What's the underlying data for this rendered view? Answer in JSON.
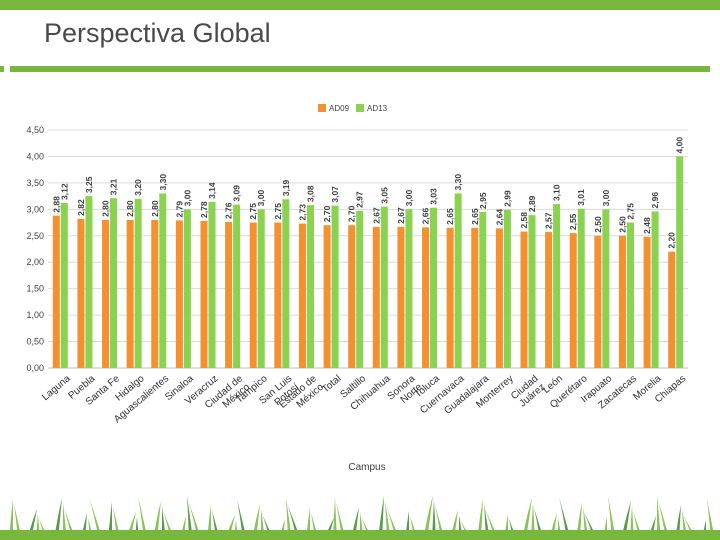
{
  "slide": {
    "title": "Perspectiva Global"
  },
  "colors": {
    "series_ad09": "#f5902e",
    "series_ad13": "#8ad24f",
    "title_text": "#4a4a4a",
    "accent_green": "#77b83c",
    "accent_dark": "#3d8a2a"
  },
  "chart_data": {
    "type": "bar",
    "title": "",
    "xlabel": "Campus",
    "ylabel": "",
    "ylim": [
      0,
      4.5
    ],
    "yticks": [
      "0,00",
      "0,50",
      "1,00",
      "1,50",
      "2,00",
      "2,50",
      "3,00",
      "3,50",
      "4,00",
      "4,50"
    ],
    "grid": true,
    "legend_position": "top-center",
    "categories": [
      "Laguna",
      "Puebla",
      "Santa Fe",
      "Hidalgo",
      "Aguascalientes",
      "Sinaloa",
      "Veracruz",
      "Ciudad de México",
      "Tampico",
      "San Luis Potosí",
      "Estado de México",
      "Total",
      "Saltillo",
      "Chihuahua",
      "Sonora Norte",
      "Toluca",
      "Cuernavaca",
      "Guadalajara",
      "Monterrey",
      "Ciudad Juárez",
      "León",
      "Querétaro",
      "Irapuato",
      "Zacatecas",
      "Morelia",
      "Chiapas"
    ],
    "series": [
      {
        "name": "AD09",
        "values": [
          2.88,
          2.82,
          2.8,
          2.8,
          2.8,
          2.79,
          2.78,
          2.76,
          2.75,
          2.75,
          2.73,
          2.7,
          2.7,
          2.67,
          2.67,
          2.66,
          2.65,
          2.65,
          2.64,
          2.58,
          2.57,
          2.55,
          2.5,
          2.5,
          2.48,
          2.2
        ],
        "labels": [
          "2,88",
          "2,82",
          "2,80",
          "2,80",
          "2,80",
          "2,79",
          "2,78",
          "2,76",
          "2,75",
          "2,75",
          "2,73",
          "2,70",
          "2,70",
          "2,67",
          "2,67",
          "2,66",
          "2,65",
          "2,65",
          "2,64",
          "2,58",
          "2,57",
          "2,55",
          "2,50",
          "2,50",
          "2,48",
          "2,20"
        ]
      },
      {
        "name": "AD13",
        "values": [
          3.12,
          3.25,
          3.21,
          3.2,
          3.3,
          3.0,
          3.14,
          3.09,
          3.0,
          3.19,
          3.08,
          3.07,
          2.97,
          3.05,
          3.0,
          3.03,
          3.3,
          2.95,
          2.99,
          2.89,
          3.1,
          3.01,
          3.0,
          2.75,
          2.96,
          4.0
        ],
        "labels": [
          "3,12",
          "3,25",
          "3,21",
          "3,20",
          "3,30",
          "3,00",
          "3,14",
          "3,09",
          "3,00",
          "3,19",
          "3,08",
          "3,07",
          "2,97",
          "3,05",
          "3,00",
          "3,03",
          "3,30",
          "2,95",
          "2,99",
          "2,89",
          "3,10",
          "3,01",
          "3,00",
          "2,75",
          "2,96",
          "4,00"
        ]
      }
    ]
  }
}
